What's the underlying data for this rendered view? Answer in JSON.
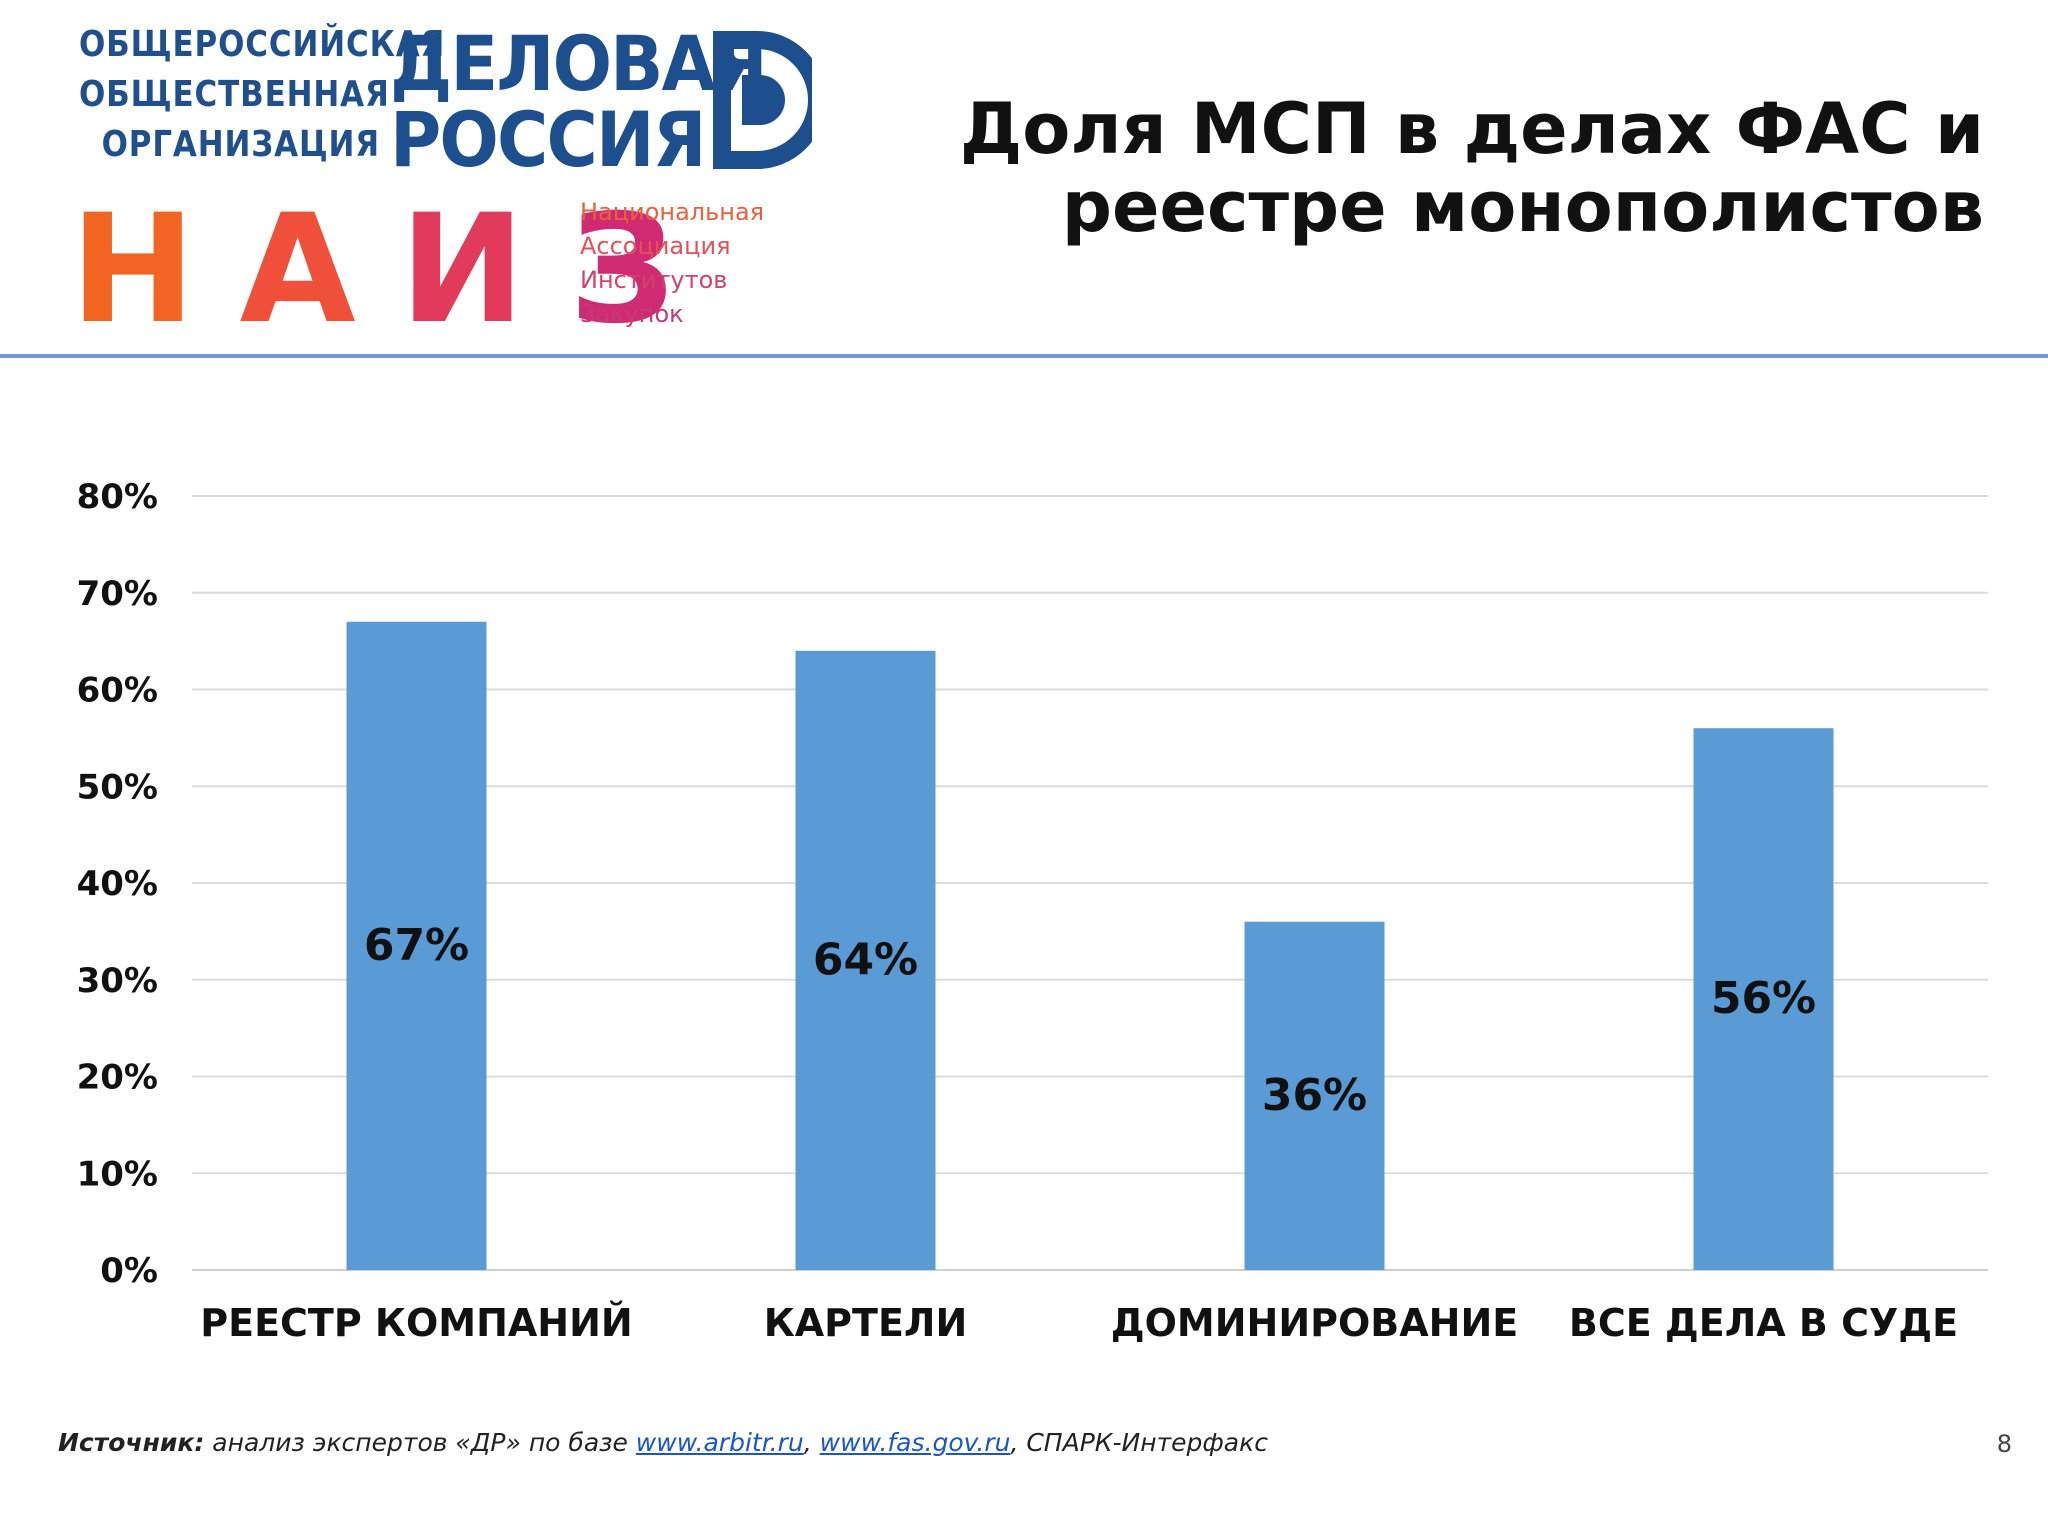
{
  "header": {
    "org_line1": "ОБЩЕРОССИЙСКАЯ",
    "org_line2": "ОБЩЕСТВЕННАЯ",
    "org_line3": "ОРГАНИЗАЦИЯ",
    "brand_line1": "ДЕЛОВАЯ",
    "brand_line2": "РОССИЯ",
    "naiz_letters": [
      "Н",
      "А",
      "И",
      "З"
    ],
    "naiz_line1": "Национальная",
    "naiz_line2": "Ассоциация",
    "naiz_line3": "Институтов",
    "naiz_line4": "Закупок",
    "title_line1": "Доля МСП в делах ФАС и",
    "title_line2": "реестре монополистов"
  },
  "colors": {
    "bar": "#5b9bd5",
    "brand_blue": "#1d4f8e",
    "divider": "#6f9bd0",
    "naiz_h": "#f26522",
    "naiz_a": "#f0503a",
    "naiz_i": "#e23a5a",
    "naiz_z": "#d02a72"
  },
  "chart_data": {
    "type": "bar",
    "categories": [
      "РЕЕСТР КОМПАНИЙ",
      "КАРТЕЛИ",
      "ДОМИНИРОВАНИЕ",
      "ВСЕ ДЕЛА В СУДЕ"
    ],
    "values": [
      67,
      64,
      36,
      56
    ],
    "data_labels": [
      "67%",
      "64%",
      "36%",
      "56%"
    ],
    "ylim": [
      0,
      80
    ],
    "yticks": [
      "0%",
      "10%",
      "20%",
      "30%",
      "40%",
      "50%",
      "60%",
      "70%",
      "80%"
    ],
    "grid": true,
    "legend": "none",
    "title": "",
    "xlabel": "",
    "ylabel": ""
  },
  "footer": {
    "source_label": "Источник:",
    "source_text": " анализ экспертов «ДР» по базе ",
    "link1": "www.arbitr.ru",
    "sep": ", ",
    "link2": "www.fas.gov.ru",
    "tail": ", СПАРК-Интерфакс",
    "page_number": "8"
  }
}
